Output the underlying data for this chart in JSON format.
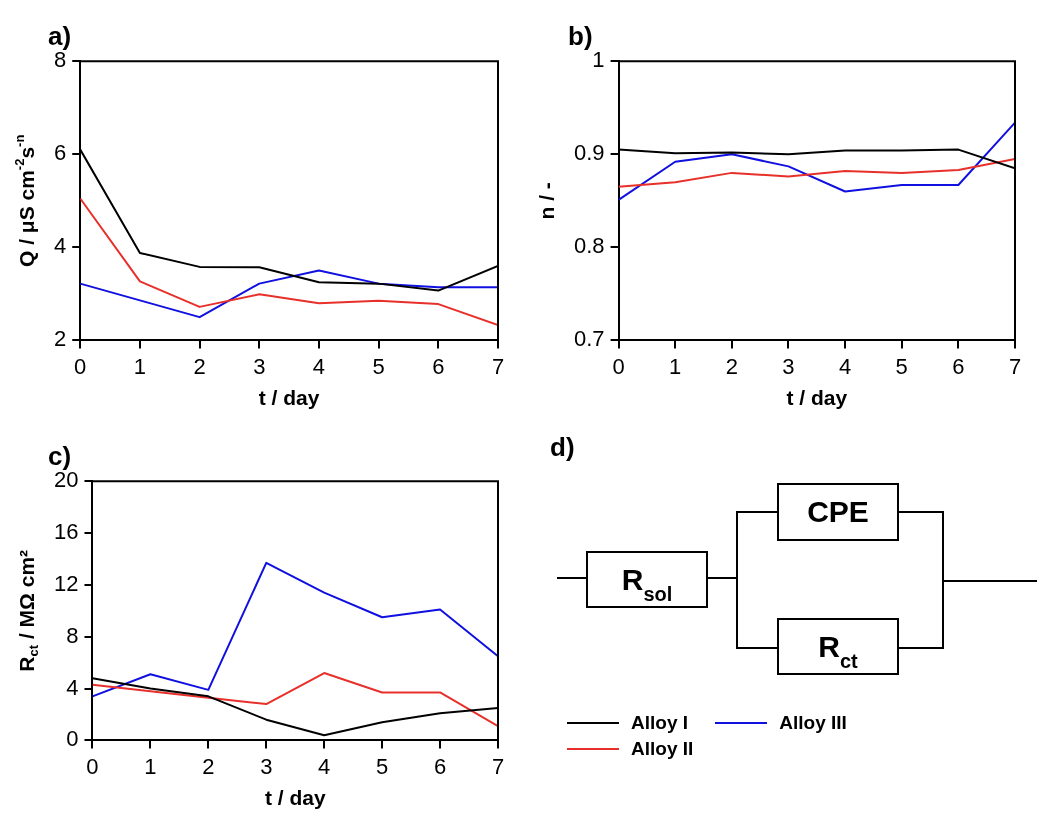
{
  "chart_data": [
    {
      "type": "line",
      "title": "a)",
      "xlabel": "t / day",
      "ylabel": "Q / μS cm$^{-2}$s$^{-n}$",
      "x": [
        0,
        1,
        2,
        3,
        4,
        5,
        6,
        7
      ],
      "xlim": [
        0,
        7
      ],
      "xticks": [
        0,
        1,
        2,
        3,
        4,
        5,
        6,
        7
      ],
      "ylim": [
        2,
        8
      ],
      "yticks": [
        2,
        4,
        6,
        8
      ],
      "marker": "none",
      "series": [
        {
          "color": "#000000",
          "values": [
            6.1,
            3.88,
            3.58,
            3.57,
            3.25,
            3.22,
            3.07,
            3.6
          ]
        },
        {
          "color": "#e8302a",
          "values": [
            5.05,
            3.27,
            2.72,
            2.99,
            2.8,
            2.85,
            2.78,
            2.33
          ]
        },
        {
          "color": "#1010e0",
          "values": [
            3.22,
            2.86,
            2.5,
            3.22,
            3.5,
            3.22,
            3.14,
            3.14
          ]
        }
      ]
    },
    {
      "type": "line",
      "title": "b)",
      "xlabel": "t / day",
      "ylabel": "n / -",
      "x": [
        0,
        1,
        2,
        3,
        4,
        5,
        6,
        7
      ],
      "xlim": [
        0,
        7
      ],
      "xticks": [
        0,
        1,
        2,
        3,
        4,
        5,
        6,
        7
      ],
      "ylim": [
        0.7,
        1
      ],
      "yticks": [
        0.7,
        0.8,
        0.9,
        1
      ],
      "marker": "none",
      "series": [
        {
          "color": "#000000",
          "values": [
            0.905,
            0.901,
            0.902,
            0.9,
            0.904,
            0.904,
            0.905,
            0.885
          ]
        },
        {
          "color": "#e8302a",
          "values": [
            0.865,
            0.87,
            0.88,
            0.876,
            0.882,
            0.88,
            0.883,
            0.895
          ]
        },
        {
          "color": "#1010e0",
          "values": [
            0.851,
            0.892,
            0.9,
            0.887,
            0.86,
            0.867,
            0.867,
            0.934
          ]
        }
      ]
    },
    {
      "type": "line",
      "title": "c)",
      "xlabel": "t / day",
      "ylabel": "R$_{ct}$ / MΩ cm²",
      "x": [
        0,
        1,
        2,
        3,
        4,
        5,
        6,
        7
      ],
      "xlim": [
        0,
        7
      ],
      "xticks": [
        0,
        1,
        2,
        3,
        4,
        5,
        6,
        7
      ],
      "ylim": [
        0,
        20
      ],
      "yticks": [
        0,
        4,
        8,
        12,
        16,
        20
      ],
      "marker": "none",
      "legend": "right",
      "series": [
        {
          "name": "Alloy I",
          "color": "#000000",
          "values": [
            4.8,
            4.0,
            3.4,
            1.6,
            0.4,
            1.4,
            2.1,
            2.5
          ]
        },
        {
          "name": "Alloy II",
          "color": "#e8302a",
          "values": [
            4.3,
            3.8,
            3.3,
            2.8,
            5.2,
            3.7,
            3.7,
            1.1
          ]
        },
        {
          "name": "Alloy III",
          "color": "#1010e0",
          "values": [
            3.4,
            5.1,
            3.9,
            13.7,
            11.4,
            9.5,
            10.1,
            6.5
          ]
        }
      ]
    },
    {
      "type": "other",
      "title": "d)",
      "annotations": [
        "R$_{sol}$",
        "CPE",
        "R$_{ct}$"
      ]
    }
  ]
}
